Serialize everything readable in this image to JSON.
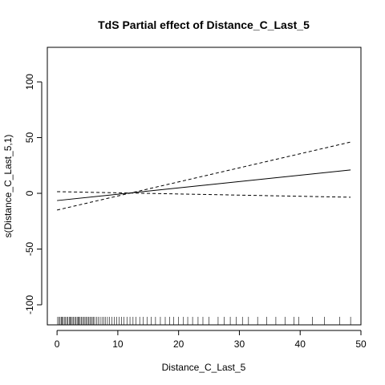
{
  "chart_data": {
    "type": "line",
    "title": "TdS Partial effect of Distance_C_Last_5",
    "xlabel": "Distance_C_Last_5",
    "ylabel": "s(Distance_C_Last_5,1)",
    "xlim": [
      -1.6,
      50.0
    ],
    "ylim": [
      -118,
      131
    ],
    "x_ticks": [
      0,
      10,
      20,
      30,
      40,
      50
    ],
    "y_ticks": [
      -100,
      -50,
      0,
      50,
      100
    ],
    "grid": false,
    "legend": "none",
    "series": [
      {
        "style": "solid",
        "x": [
          0,
          48.3
        ],
        "y": [
          -6.5,
          21
        ]
      },
      {
        "style": "dashed",
        "x": [
          0,
          48.3
        ],
        "y": [
          -15,
          46
        ]
      },
      {
        "style": "dashed",
        "x": [
          0,
          48.3
        ],
        "y": [
          1.5,
          -3.5
        ]
      }
    ],
    "rug": [
      0.1,
      0.3,
      0.5,
      0.7,
      0.8,
      1.0,
      1.2,
      1.4,
      1.6,
      1.8,
      2.0,
      2.2,
      2.3,
      2.5,
      2.7,
      2.9,
      3.1,
      3.3,
      3.5,
      3.6,
      3.8,
      4.0,
      4.2,
      4.4,
      4.6,
      4.8,
      5.0,
      5.2,
      5.4,
      5.6,
      5.8,
      6.0,
      6.2,
      6.5,
      6.8,
      7.1,
      7.4,
      7.7,
      8.0,
      8.3,
      8.6,
      9.0,
      9.4,
      9.8,
      10.2,
      10.6,
      11.0,
      11.5,
      12.0,
      12.5,
      13.0,
      13.6,
      14.2,
      14.8,
      15.5,
      16.2,
      17.0,
      17.8,
      18.5,
      19.2,
      20.0,
      20.8,
      21.5,
      22.3,
      23.2,
      24.0,
      25.0,
      26.5,
      27.5,
      28.5,
      29.5,
      30.5,
      31.5,
      33.0,
      34.5,
      36.0,
      37.5,
      39.0,
      39.8,
      42.0,
      44.0,
      46.5,
      48.3
    ]
  }
}
